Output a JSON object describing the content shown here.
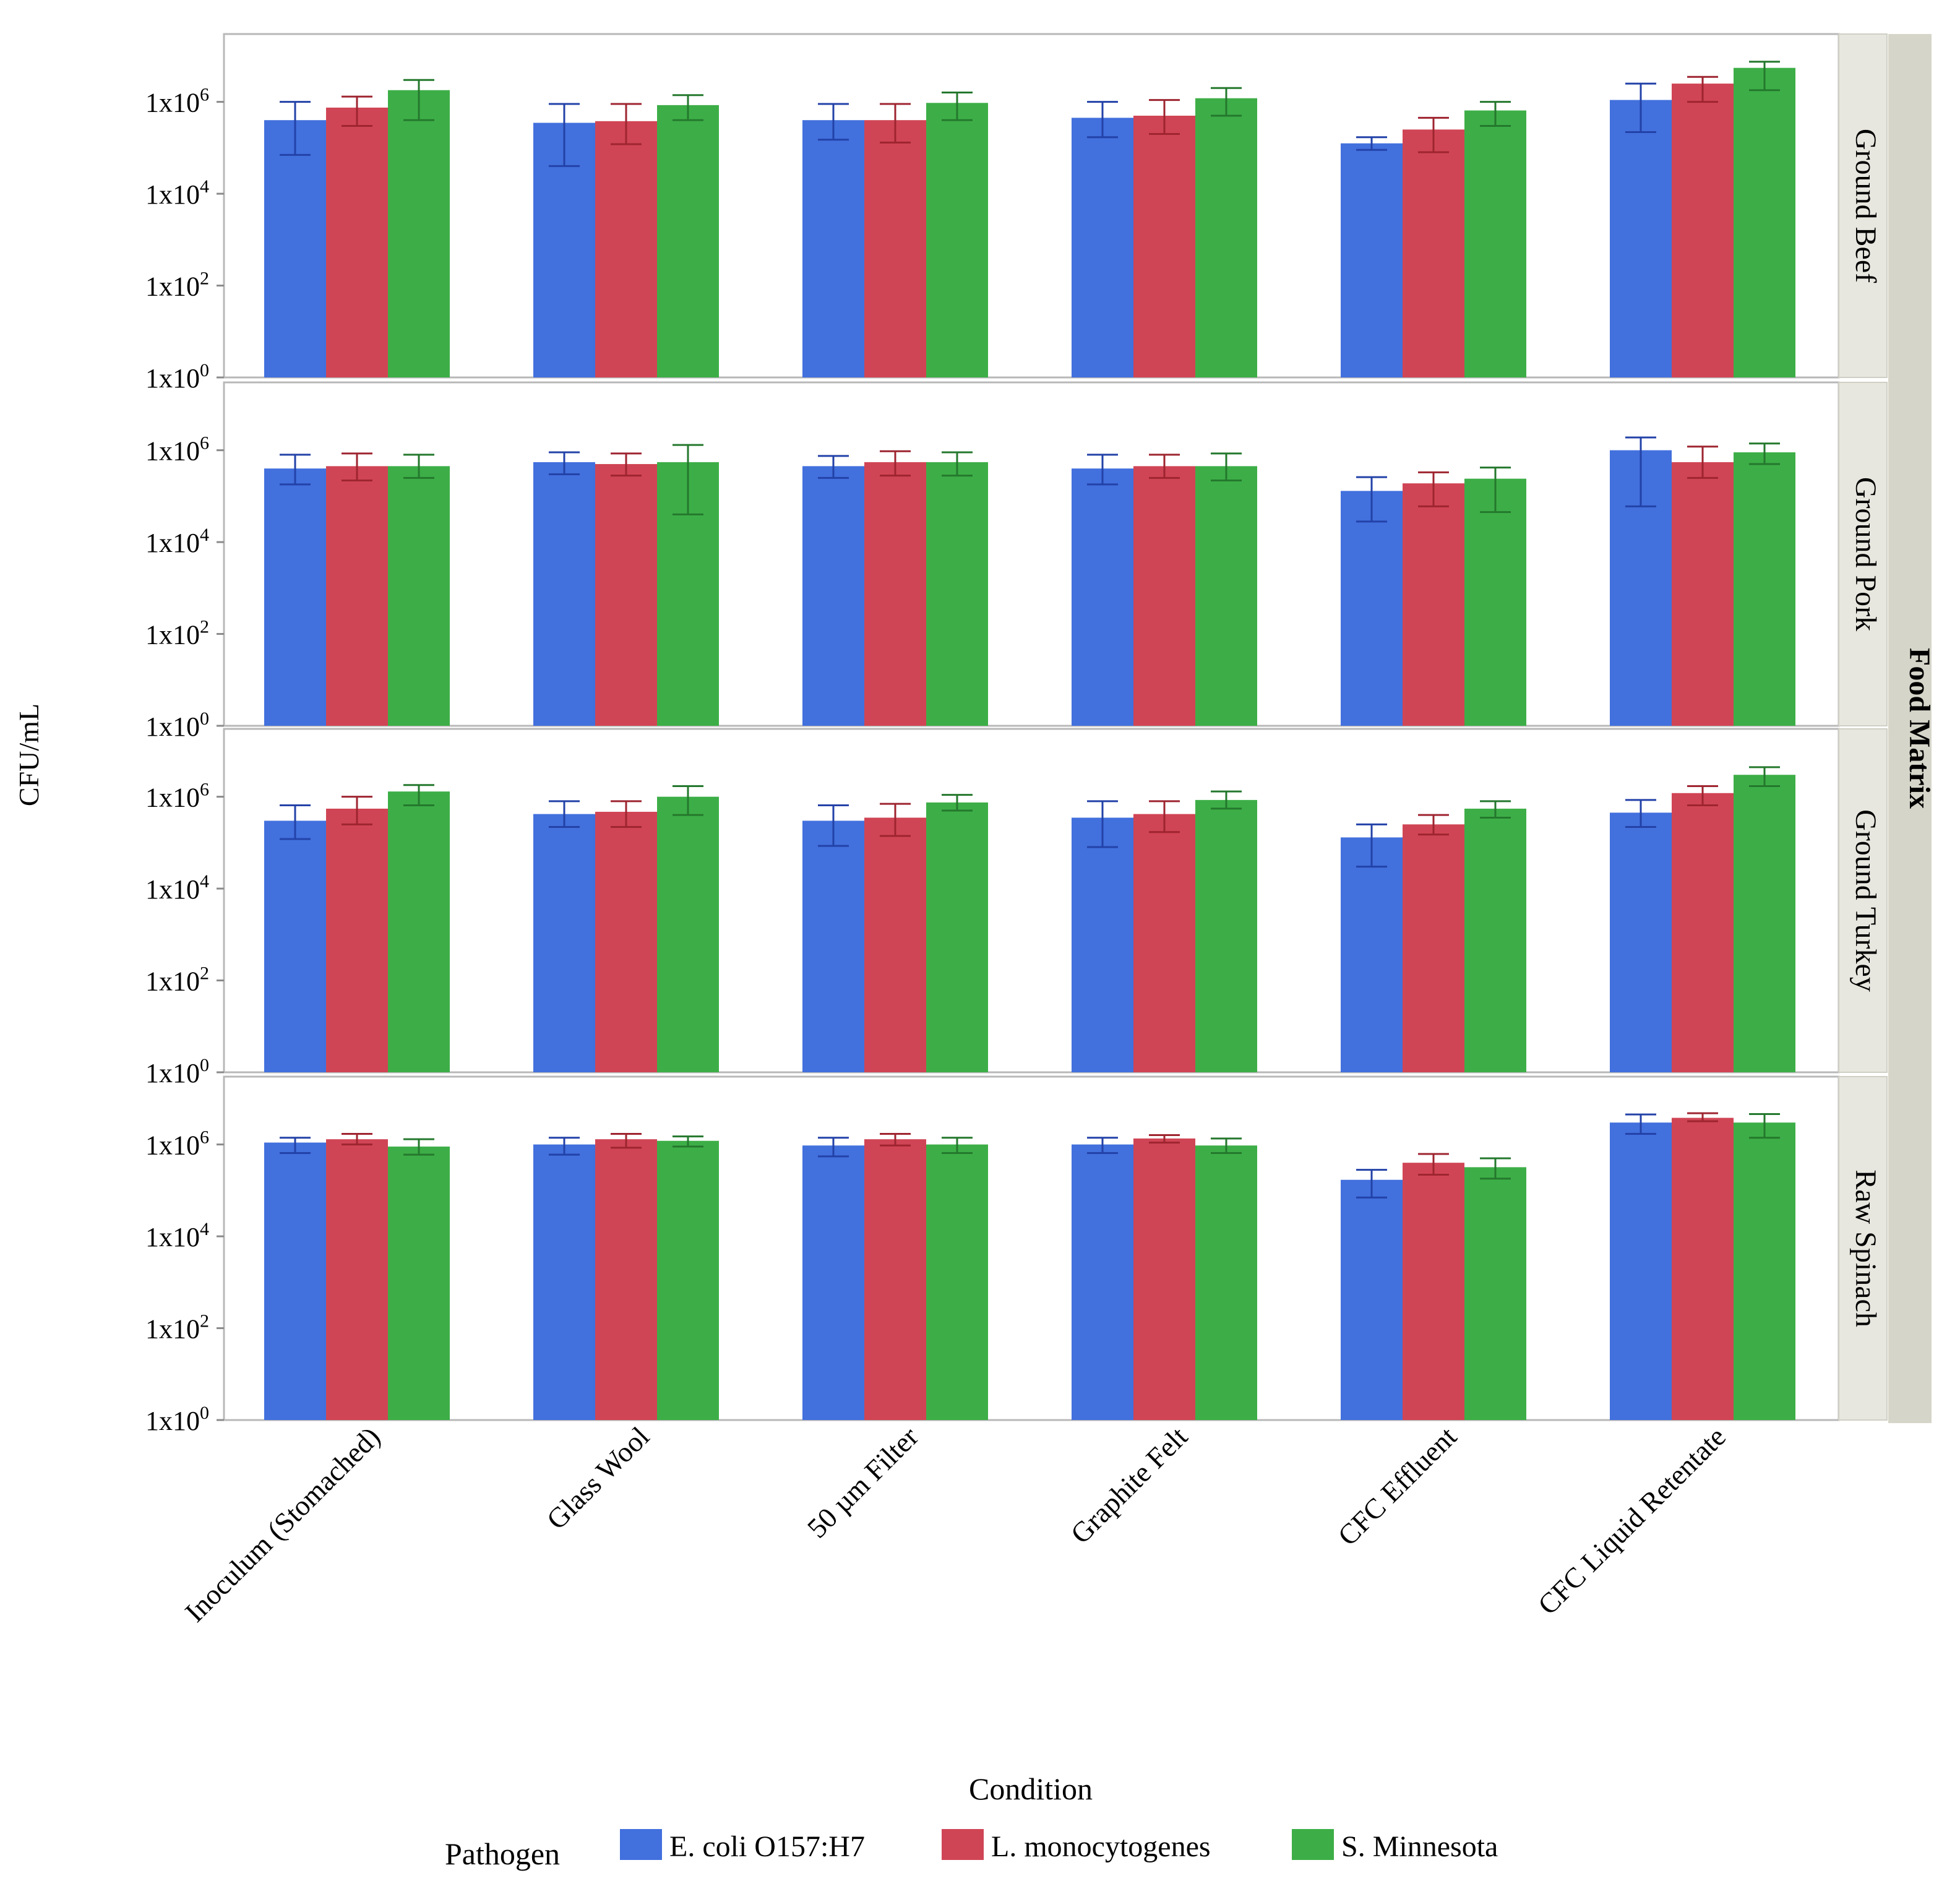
{
  "chart_data": {
    "type": "bar",
    "facet_label": "Food Matrix",
    "xlabel": "Condition",
    "ylabel": "CFU/mL",
    "y_scale": "log10",
    "ylim": [
      1,
      30000000
    ],
    "yticks": [
      {
        "value": 1,
        "base": "1x10",
        "exp": "0"
      },
      {
        "value": 100,
        "base": "1x10",
        "exp": "2"
      },
      {
        "value": 10000,
        "base": "1x10",
        "exp": "4"
      },
      {
        "value": 1000000,
        "base": "1x10",
        "exp": "6"
      }
    ],
    "categories": [
      "Inoculum (Stomached)",
      "Glass Wool",
      "50 µm Filter",
      "Graphite Felt",
      "CFC Effluent",
      "CFC Liquid Retentate"
    ],
    "legend": {
      "title": "Pathogen",
      "position": "bottom"
    },
    "series_meta": [
      {
        "name": "E. coli O157:H7",
        "color": "#4270DD",
        "err_color": "#2342A8"
      },
      {
        "name": "L. monocytogenes",
        "color": "#D04555",
        "err_color": "#9E2530"
      },
      {
        "name": "S. Minnesota",
        "color": "#3DAE47",
        "err_color": "#24782D"
      }
    ],
    "panels": [
      {
        "name": "Ground Beef",
        "series": [
          {
            "name": "E. coli O157:H7",
            "values": [
              400000,
              350000,
              400000,
              450000,
              125000,
              1100000
            ],
            "err_low": [
              70000,
              40000,
              150000,
              170000,
              90000,
              220000
            ],
            "err_high": [
              1000000,
              900000,
              900000,
              1000000,
              170000,
              2500000
            ]
          },
          {
            "name": "L. monocytogenes",
            "values": [
              750000,
              380000,
              400000,
              500000,
              250000,
              2500000
            ],
            "err_low": [
              300000,
              120000,
              130000,
              200000,
              80000,
              1000000
            ],
            "err_high": [
              1300000,
              900000,
              900000,
              1100000,
              450000,
              3500000
            ]
          },
          {
            "name": "S. Minnesota",
            "values": [
              1800000,
              850000,
              950000,
              1200000,
              650000,
              5500000
            ],
            "err_low": [
              400000,
              400000,
              400000,
              500000,
              300000,
              1800000
            ],
            "err_high": [
              3000000,
              1400000,
              1600000,
              2000000,
              1000000,
              7500000
            ]
          }
        ]
      },
      {
        "name": "Ground Pork",
        "series": [
          {
            "name": "E. coli O157:H7",
            "values": [
              400000,
              550000,
              450000,
              400000,
              130000,
              1000000
            ],
            "err_low": [
              180000,
              300000,
              250000,
              180000,
              28000,
              60000
            ],
            "err_high": [
              800000,
              900000,
              750000,
              800000,
              260000,
              1900000
            ]
          },
          {
            "name": "L. monocytogenes",
            "values": [
              450000,
              500000,
              550000,
              450000,
              190000,
              550000
            ],
            "err_low": [
              220000,
              280000,
              280000,
              250000,
              60000,
              250000
            ],
            "err_high": [
              850000,
              850000,
              950000,
              800000,
              330000,
              1200000
            ]
          },
          {
            "name": "S. Minnesota",
            "values": [
              450000,
              550000,
              550000,
              450000,
              240000,
              900000
            ],
            "err_low": [
              250000,
              40000,
              280000,
              220000,
              45000,
              500000
            ],
            "err_high": [
              800000,
              1300000,
              900000,
              850000,
              420000,
              1400000
            ]
          }
        ]
      },
      {
        "name": "Ground Turkey",
        "series": [
          {
            "name": "E. coli O157:H7",
            "values": [
              300000,
              420000,
              300000,
              350000,
              130000,
              450000
            ],
            "err_low": [
              120000,
              220000,
              85000,
              80000,
              30000,
              220000
            ],
            "err_high": [
              650000,
              800000,
              650000,
              800000,
              250000,
              850000
            ]
          },
          {
            "name": "L. monocytogenes",
            "values": [
              550000,
              470000,
              350000,
              420000,
              250000,
              1200000
            ],
            "err_low": [
              250000,
              220000,
              140000,
              170000,
              150000,
              650000
            ],
            "err_high": [
              1000000,
              800000,
              700000,
              800000,
              400000,
              1700000
            ]
          },
          {
            "name": "S. Minnesota",
            "values": [
              1300000,
              1000000,
              750000,
              850000,
              550000,
              3000000
            ],
            "err_low": [
              650000,
              400000,
              500000,
              550000,
              350000,
              1700000
            ],
            "err_high": [
              1800000,
              1700000,
              1100000,
              1300000,
              800000,
              4400000
            ]
          }
        ]
      },
      {
        "name": "Raw Spinach",
        "series": [
          {
            "name": "E. coli O157:H7",
            "values": [
              1100000,
              1000000,
              950000,
              1000000,
              170000,
              3000000
            ],
            "err_low": [
              650000,
              600000,
              550000,
              650000,
              70000,
              1700000
            ],
            "err_high": [
              1400000,
              1400000,
              1400000,
              1400000,
              280000,
              4500000
            ]
          },
          {
            "name": "L. monocytogenes",
            "values": [
              1300000,
              1300000,
              1300000,
              1350000,
              400000,
              3800000
            ],
            "err_low": [
              1000000,
              850000,
              950000,
              1100000,
              220000,
              3200000
            ],
            "err_high": [
              1700000,
              1700000,
              1700000,
              1600000,
              620000,
              4800000
            ]
          },
          {
            "name": "S. Minnesota",
            "values": [
              900000,
              1200000,
              1000000,
              950000,
              320000,
              3000000
            ],
            "err_low": [
              600000,
              900000,
              650000,
              650000,
              180000,
              1400000
            ],
            "err_high": [
              1300000,
              1500000,
              1400000,
              1350000,
              500000,
              4600000
            ]
          }
        ]
      }
    ]
  }
}
